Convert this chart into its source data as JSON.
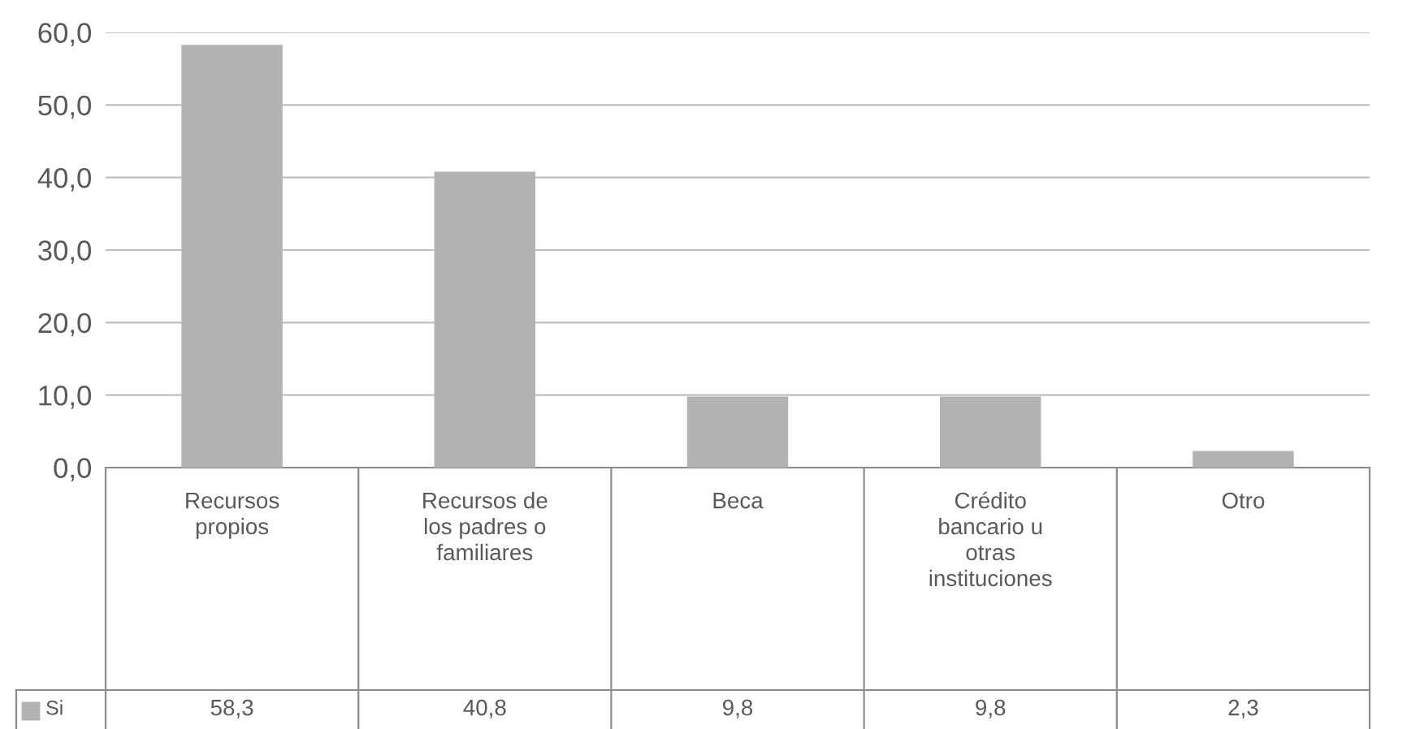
{
  "chart_data": {
    "type": "bar",
    "categories": [
      "Recursos\npropios",
      "Recursos de\nlos padres o\nfamiliares",
      "Beca",
      "Crédito\nbancario u\notras\ninstituciones",
      "Otro"
    ],
    "series": [
      {
        "name": "Si",
        "color": "#b3b3b3",
        "values": [
          58.3,
          40.8,
          9.8,
          9.8,
          2.3
        ],
        "value_labels": [
          "58,3",
          "40,8",
          "9,8",
          "9,8",
          "2,3"
        ]
      }
    ],
    "ylim": [
      0,
      60
    ],
    "yticks": [
      {
        "value": 0,
        "label": "0,0"
      },
      {
        "value": 10,
        "label": "10,0"
      },
      {
        "value": 20,
        "label": "20,0"
      },
      {
        "value": 30,
        "label": "30,0"
      },
      {
        "value": 40,
        "label": "40,0"
      },
      {
        "value": 50,
        "label": "50,0"
      },
      {
        "value": 60,
        "label": "60,0"
      }
    ],
    "grid": "y",
    "legend": "bottom"
  }
}
